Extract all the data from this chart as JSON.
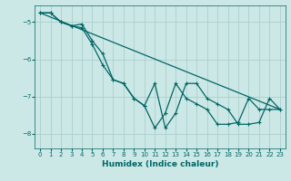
{
  "xlabel": "Humidex (Indice chaleur)",
  "bg_color": "#cce8e6",
  "grid_color": "#aacfcc",
  "line_color": "#006666",
  "xlim": [
    -0.5,
    23.5
  ],
  "ylim": [
    -8.4,
    -4.55
  ],
  "xticks": [
    0,
    1,
    2,
    3,
    4,
    5,
    6,
    7,
    8,
    9,
    10,
    11,
    12,
    13,
    14,
    15,
    16,
    17,
    18,
    19,
    20,
    21,
    22,
    23
  ],
  "yticks": [
    -8,
    -7,
    -6,
    -5
  ],
  "series1_x": [
    0,
    1,
    2,
    3,
    4,
    5,
    6,
    7,
    8,
    9,
    10,
    11,
    12,
    13,
    14,
    15,
    16,
    17,
    18,
    19,
    20,
    21,
    22,
    23
  ],
  "series1_y": [
    -4.75,
    -4.75,
    -5.0,
    -5.1,
    -5.05,
    -5.5,
    -5.85,
    -6.55,
    -6.65,
    -7.05,
    -7.25,
    -6.65,
    -7.85,
    -7.45,
    -6.65,
    -6.65,
    -7.05,
    -7.2,
    -7.35,
    -7.75,
    -7.75,
    -7.7,
    -7.05,
    -7.35
  ],
  "series2_x": [
    0,
    1,
    2,
    3,
    4,
    5,
    6,
    7,
    8,
    9,
    10,
    11,
    12,
    13,
    14,
    15,
    16,
    17,
    18,
    19,
    20,
    21,
    22,
    23
  ],
  "series2_y": [
    -4.75,
    -4.75,
    -5.0,
    -5.1,
    -5.15,
    -5.6,
    -6.15,
    -6.55,
    -6.65,
    -7.05,
    -7.25,
    -7.85,
    -7.45,
    -6.65,
    -7.05,
    -7.2,
    -7.35,
    -7.75,
    -7.75,
    -7.7,
    -7.05,
    -7.35,
    -7.35,
    -7.35
  ],
  "series3_x": [
    0,
    23
  ],
  "series3_y": [
    -4.75,
    -7.35
  ],
  "xlabel_fontsize": 6.5,
  "tick_fontsize": 5
}
